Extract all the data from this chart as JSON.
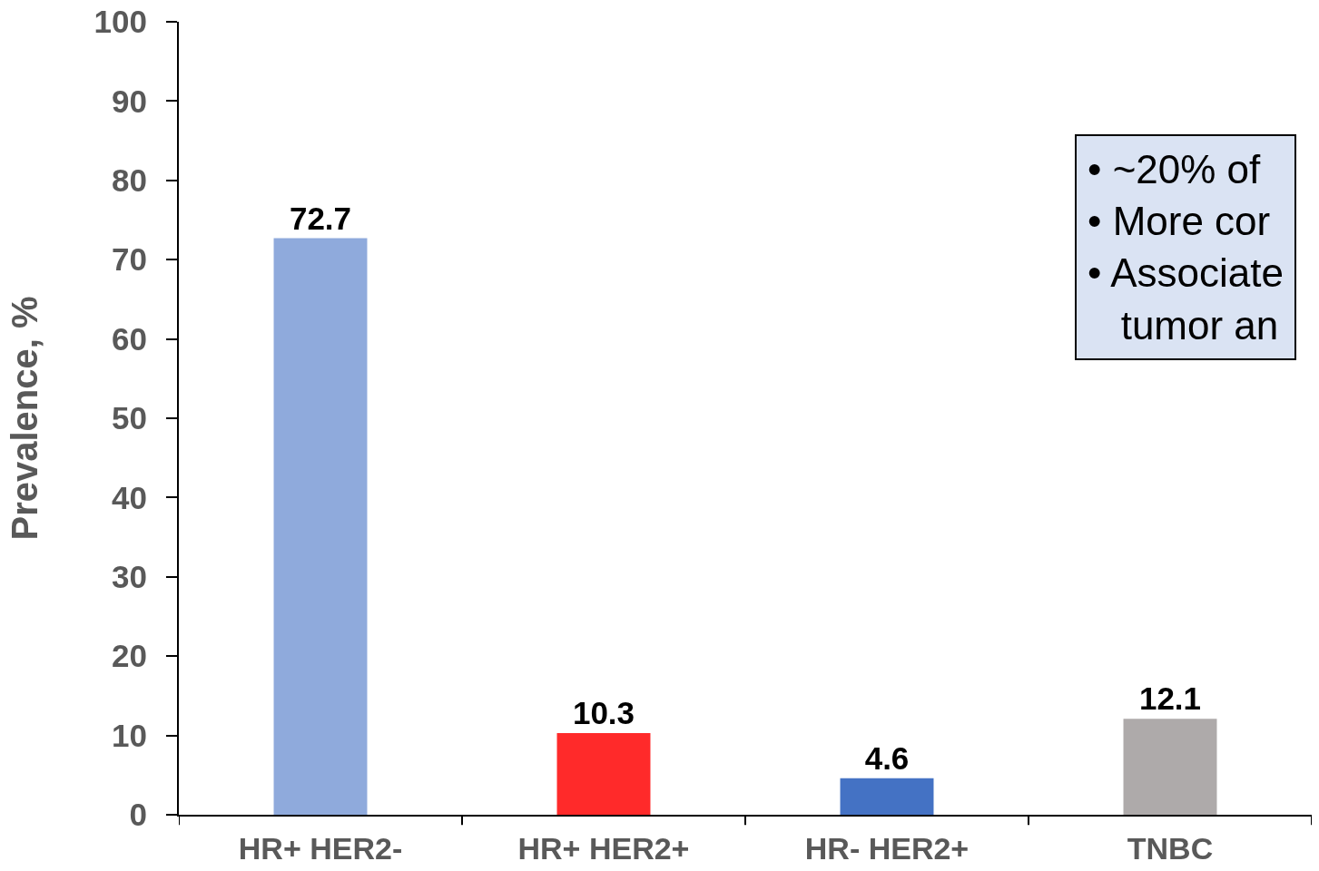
{
  "chart_data": {
    "type": "bar",
    "ylabel": "Prevalence, %",
    "categories": [
      "HR+ HER2-",
      "HR+ HER2+",
      "HR- HER2+",
      "TNBC"
    ],
    "values": [
      72.7,
      10.3,
      4.6,
      12.1
    ],
    "colors": [
      "#8faadc",
      "#ff2a2a",
      "#4472c4",
      "#aeaaaa"
    ],
    "ylim": [
      0,
      100
    ],
    "yticks": [
      0,
      10,
      20,
      30,
      40,
      50,
      60,
      70,
      80,
      90,
      100
    ],
    "data_labels": true,
    "grid": false,
    "annotations": [
      "• ~20% of",
      "• More cor",
      "• Associate\ntumor an"
    ]
  }
}
